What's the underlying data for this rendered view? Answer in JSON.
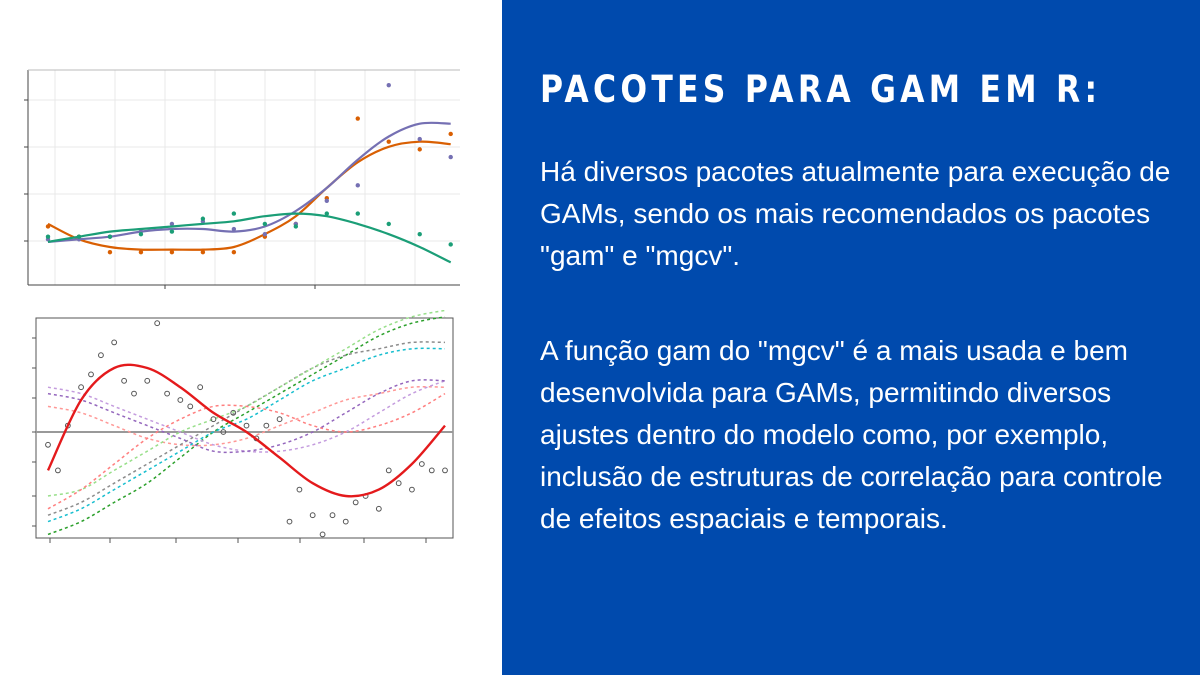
{
  "slide": {
    "title": "PACOTES PARA GAM EM R:",
    "paragraph_1": "Há diversos pacotes atualmente para execução de GAMs, sendo os mais recomendados os pacotes \"gam\" e \"mgcv\".",
    "paragraph_2": "A função gam do \"mgcv\" é a mais usada e bem desenvolvida para GAMs, permitindo diversos ajustes dentro do modelo como, por exemplo, inclusão de estruturas de correlação para controle de efeitos espaciais e temporais."
  },
  "colors": {
    "background_right": "#004aad",
    "text": "#ffffff",
    "series_orange": "#d95f02",
    "series_purple": "#7570b3",
    "series_green": "#1b9e77",
    "smooth_red": "#e41a1c"
  },
  "chart_data": [
    {
      "type": "scatter",
      "series": [
        {
          "color": "#d95f02",
          "x": [
            1,
            2,
            3,
            4,
            5,
            6,
            7,
            8,
            9,
            10,
            11,
            12,
            13,
            14
          ],
          "y": [
            2.0,
            1.6,
            1.0,
            1.0,
            1.0,
            1.0,
            1.0,
            1.6,
            2.1,
            3.1,
            6.2,
            5.3,
            5.0,
            5.6
          ],
          "fit": [
            2.1,
            1.5,
            1.2,
            1.1,
            1.1,
            1.1,
            1.2,
            1.7,
            2.4,
            3.5,
            4.5,
            5.1,
            5.3,
            5.2
          ]
        },
        {
          "color": "#7570b3",
          "x": [
            1,
            2,
            3,
            4,
            5,
            6,
            7,
            8,
            9,
            10,
            11,
            12,
            13,
            14
          ],
          "y": [
            1.5,
            1.5,
            1.6,
            1.8,
            2.1,
            2.2,
            1.9,
            1.7,
            2.1,
            3.0,
            3.6,
            7.5,
            5.4,
            4.7
          ],
          "fit": [
            1.4,
            1.5,
            1.6,
            1.8,
            1.9,
            1.9,
            1.8,
            2.0,
            2.6,
            3.5,
            4.6,
            5.5,
            6.0,
            6.0
          ]
        },
        {
          "color": "#1b9e77",
          "x": [
            1,
            2,
            3,
            4,
            5,
            6,
            7,
            8,
            9,
            10,
            11,
            12,
            13,
            14
          ],
          "y": [
            1.6,
            1.6,
            1.6,
            1.7,
            1.8,
            2.3,
            2.5,
            2.1,
            2.0,
            2.5,
            2.5,
            2.1,
            1.7,
            1.3
          ],
          "fit": [
            1.4,
            1.6,
            1.8,
            1.9,
            2.0,
            2.1,
            2.2,
            2.4,
            2.5,
            2.4,
            2.1,
            1.7,
            1.2,
            0.6
          ]
        }
      ]
    },
    {
      "type": "line",
      "smooth": {
        "color": "#e41a1c",
        "x": [
          0,
          1,
          2,
          3,
          4,
          5,
          6,
          7,
          8,
          9,
          10,
          11,
          12
        ],
        "y": [
          -0.6,
          0.5,
          1.0,
          1.0,
          0.7,
          0.3,
          0.0,
          -0.4,
          -0.8,
          -1.0,
          -0.9,
          -0.5,
          0.1
        ]
      },
      "points": {
        "x": [
          0,
          0.3,
          0.6,
          1.0,
          1.3,
          1.6,
          2.0,
          2.3,
          2.6,
          3.0,
          3.3,
          3.6,
          4.0,
          4.3,
          4.6,
          5.0,
          5.3,
          5.6,
          6.0,
          6.3,
          6.6,
          7.0,
          7.3,
          7.6,
          8.0,
          8.3,
          8.6,
          9.0,
          9.3,
          9.6,
          10.0,
          10.3,
          10.6,
          11.0,
          11.3,
          11.6,
          12.0
        ],
        "y": [
          -0.2,
          -0.6,
          0.1,
          0.7,
          0.9,
          1.2,
          1.4,
          0.8,
          0.6,
          0.8,
          1.7,
          0.6,
          0.5,
          0.4,
          0.7,
          0.2,
          0.0,
          0.3,
          0.1,
          -0.1,
          0.1,
          0.2,
          -1.4,
          -0.9,
          -1.3,
          -1.6,
          -1.3,
          -1.4,
          -1.1,
          -1.0,
          -1.2,
          -0.6,
          -0.8,
          -0.9,
          -0.5,
          -0.6,
          -0.6
        ]
      },
      "dashed_curves": [
        {
          "color": "#2ca02c",
          "y": [
            -1.6,
            -1.4,
            -1.1,
            -0.8,
            -0.4,
            0.0,
            0.3,
            0.6,
            0.9,
            1.2,
            1.5,
            1.7,
            1.8
          ]
        },
        {
          "color": "#ff9896",
          "y": [
            0.4,
            0.3,
            0.1,
            -0.1,
            -0.2,
            -0.2,
            -0.1,
            0.1,
            0.3,
            0.5,
            0.6,
            0.7,
            0.7
          ]
        },
        {
          "color": "#c49cde",
          "y": [
            0.7,
            0.6,
            0.4,
            0.2,
            0.0,
            -0.2,
            -0.3,
            -0.3,
            -0.2,
            0.0,
            0.3,
            0.6,
            0.8
          ]
        },
        {
          "color": "#8c8c8c",
          "y": [
            -1.3,
            -1.1,
            -0.8,
            -0.5,
            -0.2,
            0.1,
            0.4,
            0.7,
            1.0,
            1.2,
            1.3,
            1.4,
            1.4
          ]
        },
        {
          "color": "#98df8a",
          "y": [
            -1.0,
            -0.9,
            -0.6,
            -0.3,
            0.0,
            0.2,
            0.4,
            0.7,
            1.0,
            1.3,
            1.6,
            1.8,
            1.9
          ]
        },
        {
          "color": "#ff7f7f",
          "y": [
            -1.2,
            -0.9,
            -0.5,
            -0.1,
            0.2,
            0.4,
            0.4,
            0.3,
            0.1,
            0.0,
            0.1,
            0.3,
            0.6
          ]
        },
        {
          "color": "#9467bd",
          "y": [
            0.6,
            0.5,
            0.3,
            0.1,
            -0.1,
            -0.3,
            -0.3,
            -0.2,
            0.0,
            0.3,
            0.6,
            0.8,
            0.8
          ]
        },
        {
          "color": "#17becf",
          "y": [
            -1.4,
            -1.2,
            -0.9,
            -0.6,
            -0.3,
            0.0,
            0.2,
            0.5,
            0.8,
            1.0,
            1.2,
            1.3,
            1.3
          ]
        }
      ]
    }
  ]
}
